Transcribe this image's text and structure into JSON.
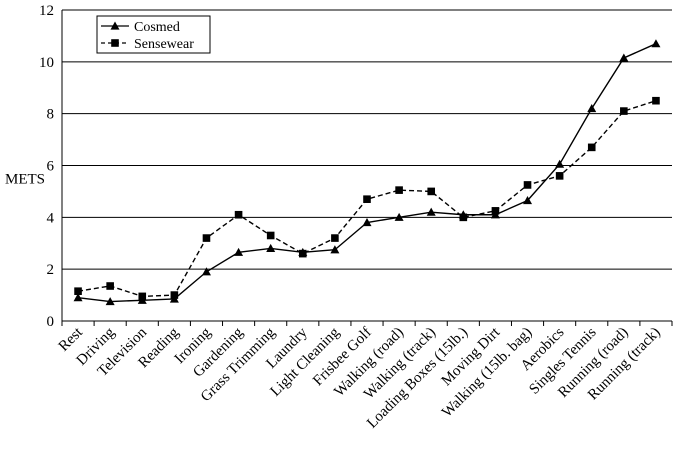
{
  "chart_data": {
    "type": "line",
    "title": "",
    "xlabel": "",
    "ylabel": "METS",
    "ylim": [
      0,
      12
    ],
    "yticks": [
      0,
      2,
      4,
      6,
      8,
      10,
      12
    ],
    "grid": "horizontal",
    "legend_position": "top-left",
    "categories": [
      "Rest",
      "Driving",
      "Television",
      "Reading",
      "Ironing",
      "Gardening",
      "Grass Trimming",
      "Laundry",
      "Light Cleaning",
      "Frisbee Golf",
      "Walking (road)",
      "Walking (track)",
      "Loading Boxes (15lb.)",
      "Moving Dirt",
      "Walking (15lb. bag)",
      "Aerobics",
      "Singles Tennis",
      "Running (road)",
      "Running (track)"
    ],
    "series": [
      {
        "name": "Cosmed",
        "marker": "triangle",
        "line": "solid",
        "color": "#000000",
        "values": [
          0.9,
          0.75,
          0.8,
          0.85,
          1.9,
          2.65,
          2.8,
          2.65,
          2.75,
          3.8,
          4.0,
          4.2,
          4.1,
          4.1,
          4.65,
          6.05,
          8.2,
          10.15,
          10.7
        ]
      },
      {
        "name": "Sensewear",
        "marker": "square",
        "line": "dashed",
        "color": "#000000",
        "values": [
          1.15,
          1.35,
          0.95,
          1.0,
          3.2,
          4.1,
          3.3,
          2.6,
          3.2,
          4.7,
          5.05,
          5.0,
          4.0,
          4.25,
          5.25,
          5.6,
          6.7,
          8.1,
          8.5
        ]
      }
    ]
  }
}
